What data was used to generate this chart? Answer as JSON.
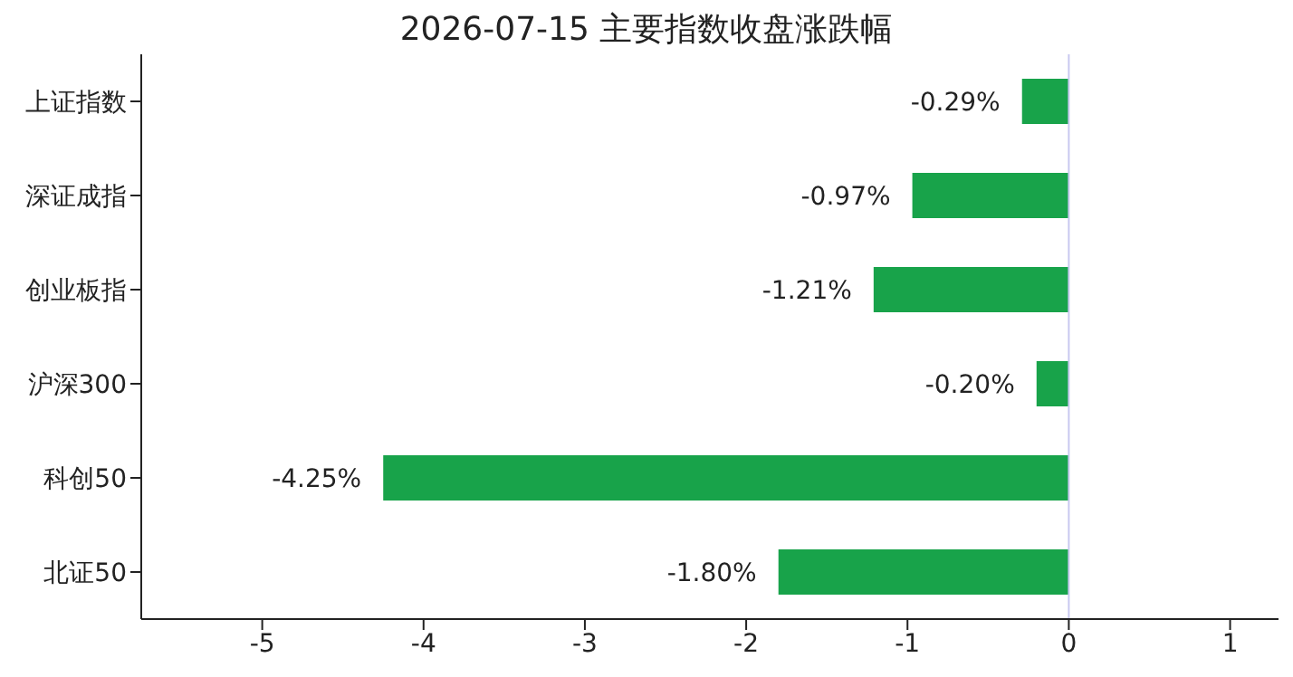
{
  "chart_data": {
    "type": "bar",
    "orientation": "horizontal",
    "title": "2026-07-15 主要指数收盘涨跌幅",
    "categories": [
      "上证指数",
      "深证成指",
      "创业板指",
      "沪深300",
      "科创50",
      "北证50"
    ],
    "values": [
      -0.29,
      -0.97,
      -1.21,
      -0.2,
      -4.25,
      -1.8
    ],
    "value_labels": [
      "-0.29%",
      "-0.97%",
      "-1.21%",
      "-0.20%",
      "-4.25%",
      "-1.80%"
    ],
    "color": "#18a34a",
    "xlim": [
      -5.75,
      1.3
    ],
    "xticks": [
      -5,
      -4,
      -3,
      -2,
      -1,
      0,
      1
    ],
    "ref_lines": [
      {
        "axis": "x",
        "value": 0,
        "color": "#c8c8f0"
      }
    ],
    "grid": false,
    "legend": false
  }
}
